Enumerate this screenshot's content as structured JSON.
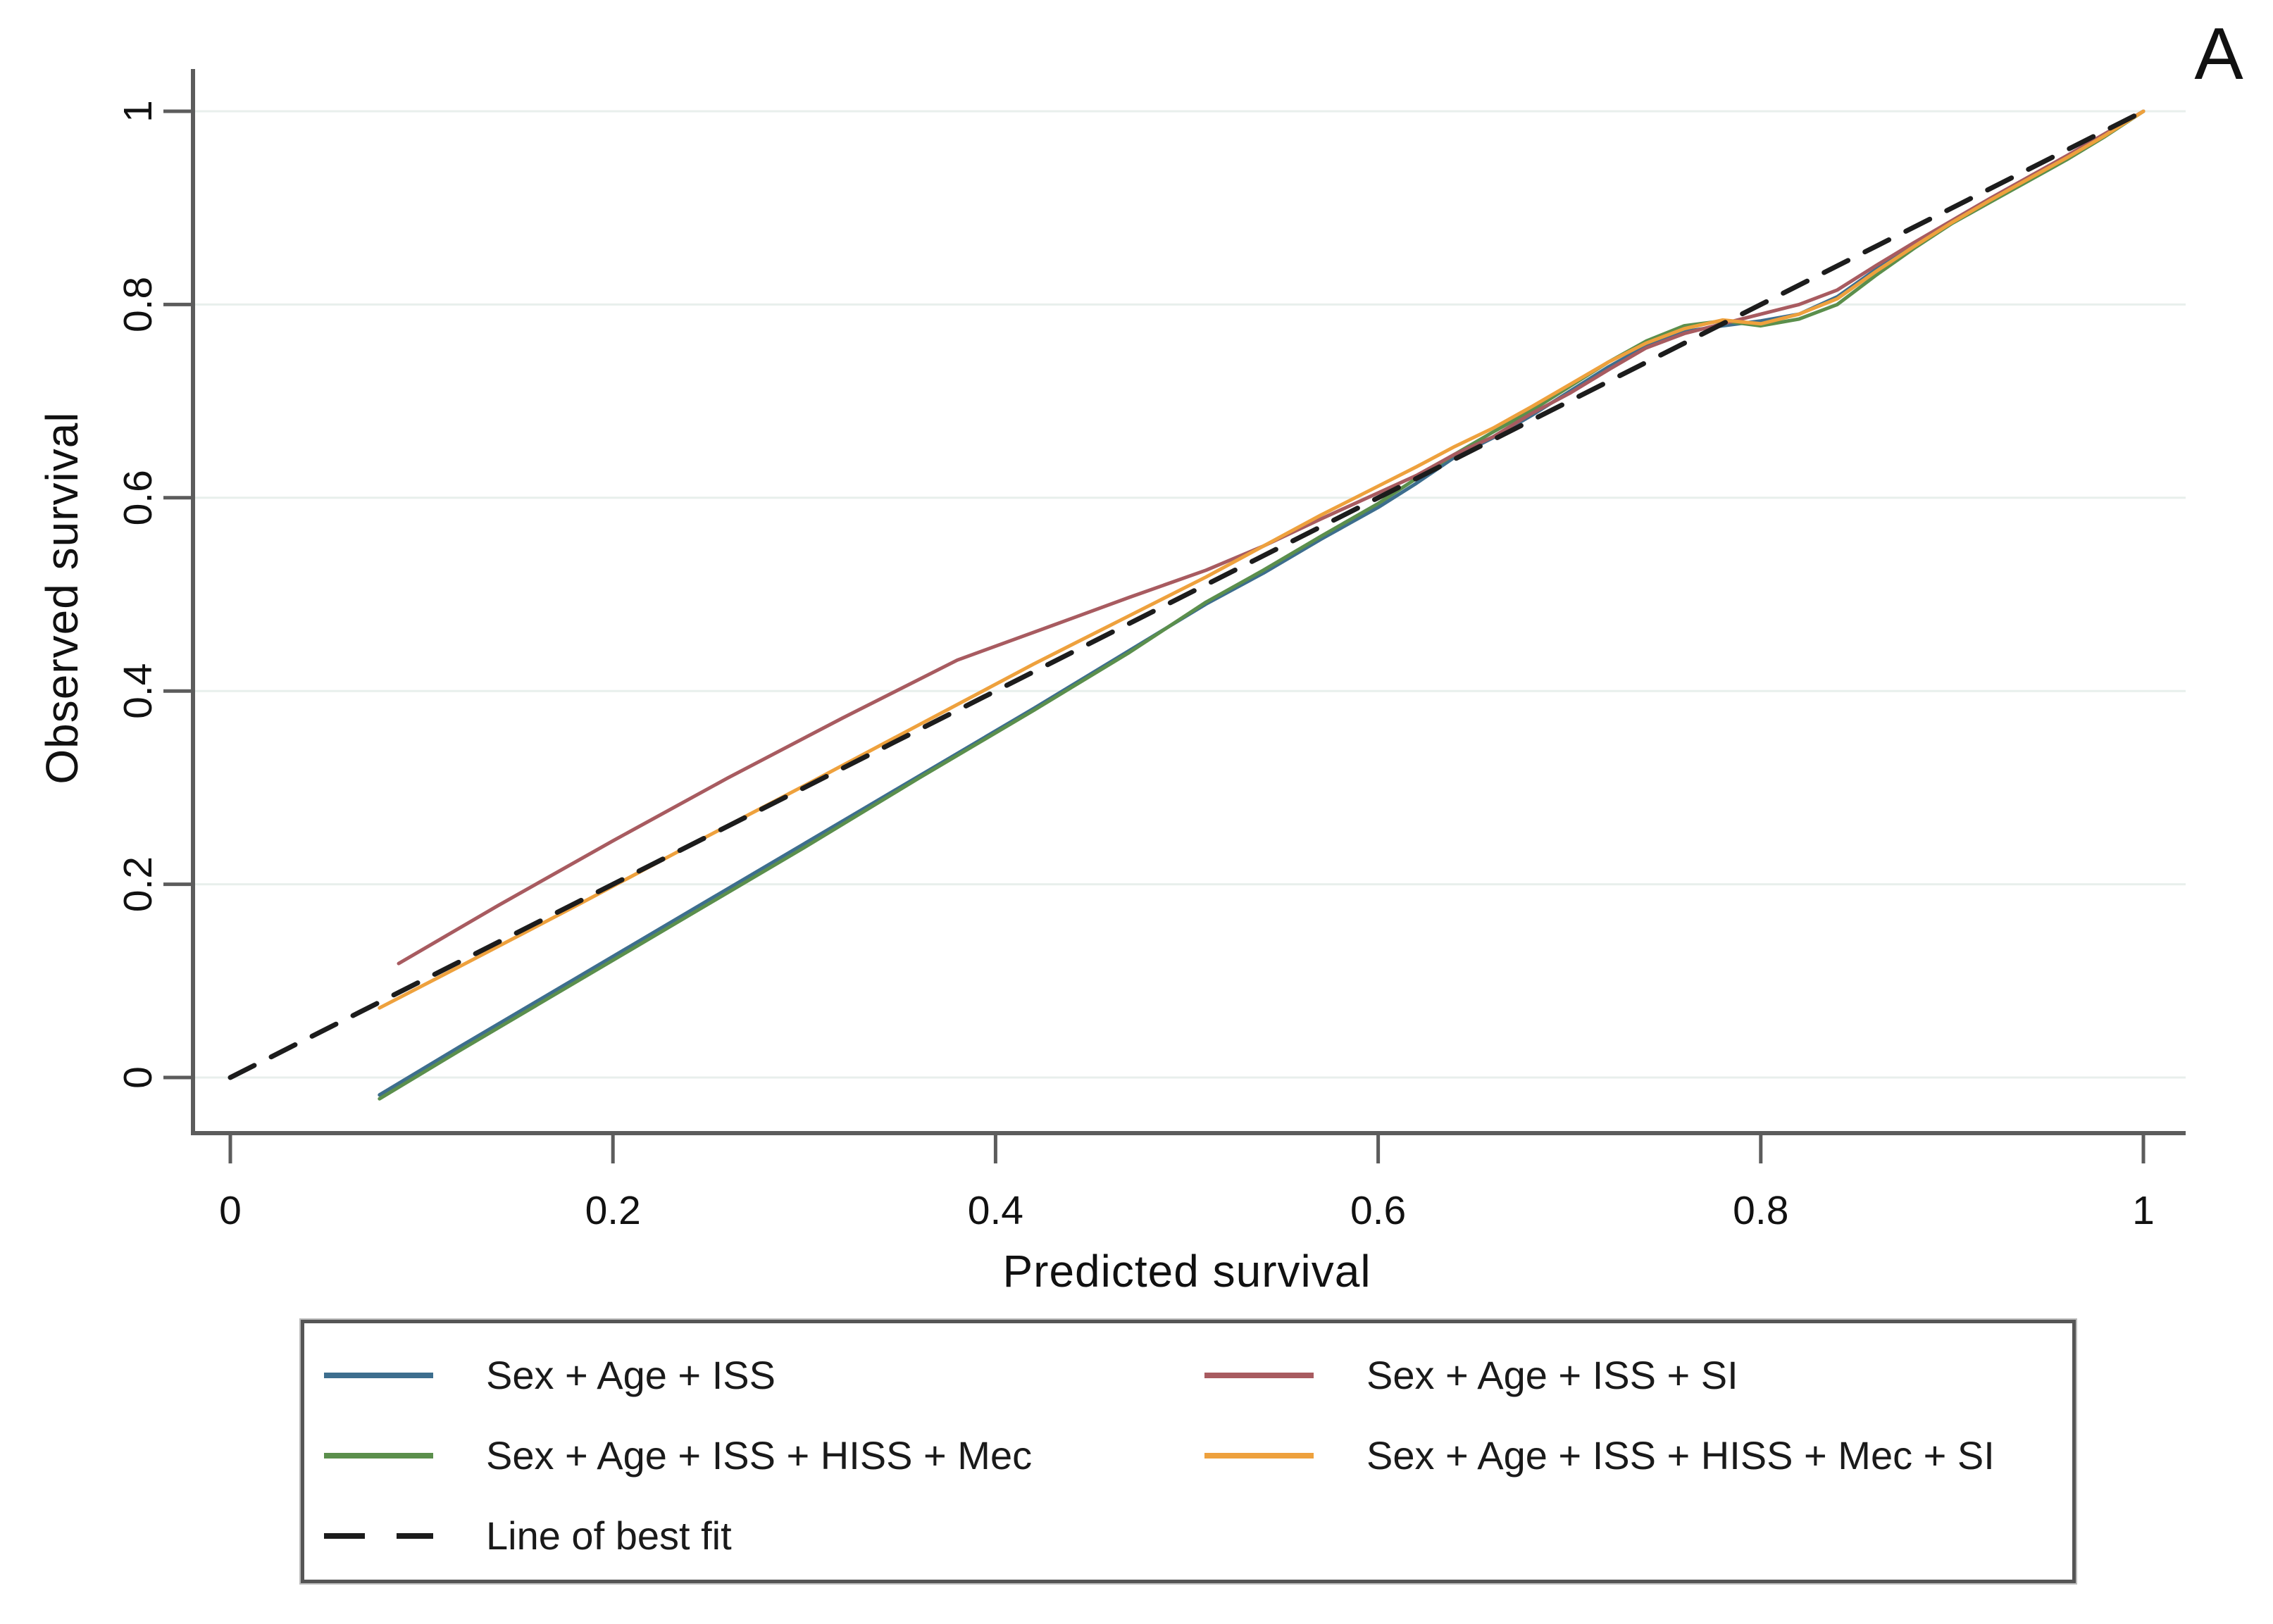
{
  "panel_label": "A",
  "colors": {
    "background": "#ffffff",
    "axis": "#5c5c5c",
    "tick_text": "#111111",
    "grid": "#e8efec",
    "legend_border": "#555555",
    "series_blue": "#3d6e8e",
    "series_green": "#5b8f4c",
    "series_red": "#a85b60",
    "series_orange": "#eea13d",
    "best_fit": "#1c1c1c"
  },
  "axes": {
    "x": {
      "title": "Predicted survival",
      "ticks": [
        {
          "value": 0,
          "label": "0"
        },
        {
          "value": 0.2,
          "label": "0.2"
        },
        {
          "value": 0.4,
          "label": "0.4"
        },
        {
          "value": 0.6,
          "label": "0.6"
        },
        {
          "value": 0.8,
          "label": "0.8"
        },
        {
          "value": 1,
          "label": "1"
        }
      ]
    },
    "y": {
      "title": "Observed survival",
      "ticks": [
        {
          "value": 0,
          "label": "0"
        },
        {
          "value": 0.2,
          "label": "0.2"
        },
        {
          "value": 0.4,
          "label": "0.4"
        },
        {
          "value": 0.6,
          "label": "0.6"
        },
        {
          "value": 0.8,
          "label": "0.8"
        },
        {
          "value": 1,
          "label": "1"
        }
      ]
    }
  },
  "chart_data": {
    "type": "line",
    "title": "",
    "xlabel": "Predicted survival",
    "ylabel": "Observed survival",
    "xlim": [
      0,
      1
    ],
    "ylim": [
      0,
      1
    ],
    "grid": "horizontal-light",
    "legend_position": "bottom-left",
    "series": [
      {
        "name": "Sex + Age + ISS",
        "id": "sex-age-iss",
        "color": "#3d6e8e",
        "style": "solid",
        "points": [
          [
            0.078,
            -0.018
          ],
          [
            0.12,
            0.032
          ],
          [
            0.18,
            0.102
          ],
          [
            0.24,
            0.172
          ],
          [
            0.3,
            0.242
          ],
          [
            0.36,
            0.312
          ],
          [
            0.42,
            0.382
          ],
          [
            0.47,
            0.442
          ],
          [
            0.51,
            0.49
          ],
          [
            0.54,
            0.522
          ],
          [
            0.57,
            0.557
          ],
          [
            0.6,
            0.59
          ],
          [
            0.62,
            0.615
          ],
          [
            0.64,
            0.642
          ],
          [
            0.66,
            0.662
          ],
          [
            0.68,
            0.685
          ],
          [
            0.7,
            0.71
          ],
          [
            0.72,
            0.735
          ],
          [
            0.74,
            0.757
          ],
          [
            0.76,
            0.772
          ],
          [
            0.78,
            0.778
          ],
          [
            0.8,
            0.783
          ],
          [
            0.82,
            0.79
          ],
          [
            0.84,
            0.808
          ],
          [
            0.86,
            0.836
          ],
          [
            0.88,
            0.862
          ],
          [
            0.9,
            0.886
          ],
          [
            0.92,
            0.908
          ],
          [
            0.94,
            0.93
          ],
          [
            0.96,
            0.952
          ],
          [
            0.98,
            0.976
          ],
          [
            1.0,
            1.0
          ]
        ]
      },
      {
        "name": "Sex + Age + ISS + HISS + Mec",
        "id": "sex-age-iss-hiss-mec",
        "color": "#5b8f4c",
        "style": "solid",
        "points": [
          [
            0.078,
            -0.022
          ],
          [
            0.12,
            0.028
          ],
          [
            0.18,
            0.098
          ],
          [
            0.24,
            0.168
          ],
          [
            0.3,
            0.238
          ],
          [
            0.36,
            0.31
          ],
          [
            0.42,
            0.38
          ],
          [
            0.47,
            0.44
          ],
          [
            0.51,
            0.492
          ],
          [
            0.54,
            0.525
          ],
          [
            0.57,
            0.56
          ],
          [
            0.6,
            0.594
          ],
          [
            0.62,
            0.62
          ],
          [
            0.64,
            0.645
          ],
          [
            0.66,
            0.668
          ],
          [
            0.68,
            0.69
          ],
          [
            0.7,
            0.715
          ],
          [
            0.72,
            0.74
          ],
          [
            0.74,
            0.762
          ],
          [
            0.76,
            0.778
          ],
          [
            0.78,
            0.783
          ],
          [
            0.8,
            0.778
          ],
          [
            0.82,
            0.785
          ],
          [
            0.84,
            0.8
          ],
          [
            0.86,
            0.83
          ],
          [
            0.88,
            0.858
          ],
          [
            0.9,
            0.884
          ],
          [
            0.92,
            0.906
          ],
          [
            0.94,
            0.928
          ],
          [
            0.96,
            0.95
          ],
          [
            0.98,
            0.974
          ],
          [
            1.0,
            1.0
          ]
        ]
      },
      {
        "name": "Sex + Age + ISS + SI",
        "id": "sex-age-iss-si",
        "color": "#a85b60",
        "style": "solid",
        "points": [
          [
            0.088,
            0.118
          ],
          [
            0.14,
            0.178
          ],
          [
            0.2,
            0.245
          ],
          [
            0.26,
            0.31
          ],
          [
            0.32,
            0.372
          ],
          [
            0.38,
            0.432
          ],
          [
            0.43,
            0.468
          ],
          [
            0.47,
            0.497
          ],
          [
            0.51,
            0.525
          ],
          [
            0.54,
            0.55
          ],
          [
            0.57,
            0.578
          ],
          [
            0.6,
            0.605
          ],
          [
            0.62,
            0.623
          ],
          [
            0.64,
            0.645
          ],
          [
            0.66,
            0.663
          ],
          [
            0.68,
            0.687
          ],
          [
            0.7,
            0.708
          ],
          [
            0.72,
            0.732
          ],
          [
            0.74,
            0.755
          ],
          [
            0.76,
            0.77
          ],
          [
            0.78,
            0.78
          ],
          [
            0.8,
            0.79
          ],
          [
            0.82,
            0.8
          ],
          [
            0.84,
            0.815
          ],
          [
            0.86,
            0.84
          ],
          [
            0.88,
            0.864
          ],
          [
            0.9,
            0.887
          ],
          [
            0.92,
            0.91
          ],
          [
            0.94,
            0.932
          ],
          [
            0.96,
            0.954
          ],
          [
            0.98,
            0.977
          ],
          [
            1.0,
            1.0
          ]
        ]
      },
      {
        "name": "Sex + Age + ISS + HISS + Mec + SI",
        "id": "sex-age-iss-hiss-mec-si",
        "color": "#eea13d",
        "style": "solid",
        "points": [
          [
            0.078,
            0.072
          ],
          [
            0.12,
            0.115
          ],
          [
            0.18,
            0.177
          ],
          [
            0.24,
            0.24
          ],
          [
            0.3,
            0.302
          ],
          [
            0.36,
            0.365
          ],
          [
            0.42,
            0.428
          ],
          [
            0.47,
            0.478
          ],
          [
            0.51,
            0.518
          ],
          [
            0.54,
            0.55
          ],
          [
            0.57,
            0.582
          ],
          [
            0.6,
            0.612
          ],
          [
            0.62,
            0.632
          ],
          [
            0.64,
            0.653
          ],
          [
            0.66,
            0.672
          ],
          [
            0.68,
            0.694
          ],
          [
            0.7,
            0.717
          ],
          [
            0.72,
            0.74
          ],
          [
            0.74,
            0.76
          ],
          [
            0.76,
            0.775
          ],
          [
            0.78,
            0.784
          ],
          [
            0.8,
            0.78
          ],
          [
            0.82,
            0.79
          ],
          [
            0.84,
            0.806
          ],
          [
            0.86,
            0.834
          ],
          [
            0.88,
            0.86
          ],
          [
            0.9,
            0.885
          ],
          [
            0.92,
            0.908
          ],
          [
            0.94,
            0.93
          ],
          [
            0.96,
            0.952
          ],
          [
            0.98,
            0.975
          ],
          [
            1.0,
            1.0
          ]
        ]
      },
      {
        "name": "Line of best fit",
        "id": "line-of-best-fit",
        "color": "#1c1c1c",
        "style": "dashed",
        "points": [
          [
            0,
            0
          ],
          [
            1,
            1
          ]
        ]
      }
    ]
  },
  "legend": {
    "items": [
      {
        "series": 0,
        "slot": "row1-left"
      },
      {
        "series": 2,
        "slot": "row1-right"
      },
      {
        "series": 1,
        "slot": "row2-left"
      },
      {
        "series": 3,
        "slot": "row2-right"
      },
      {
        "series": 4,
        "slot": "row3-left"
      }
    ]
  }
}
